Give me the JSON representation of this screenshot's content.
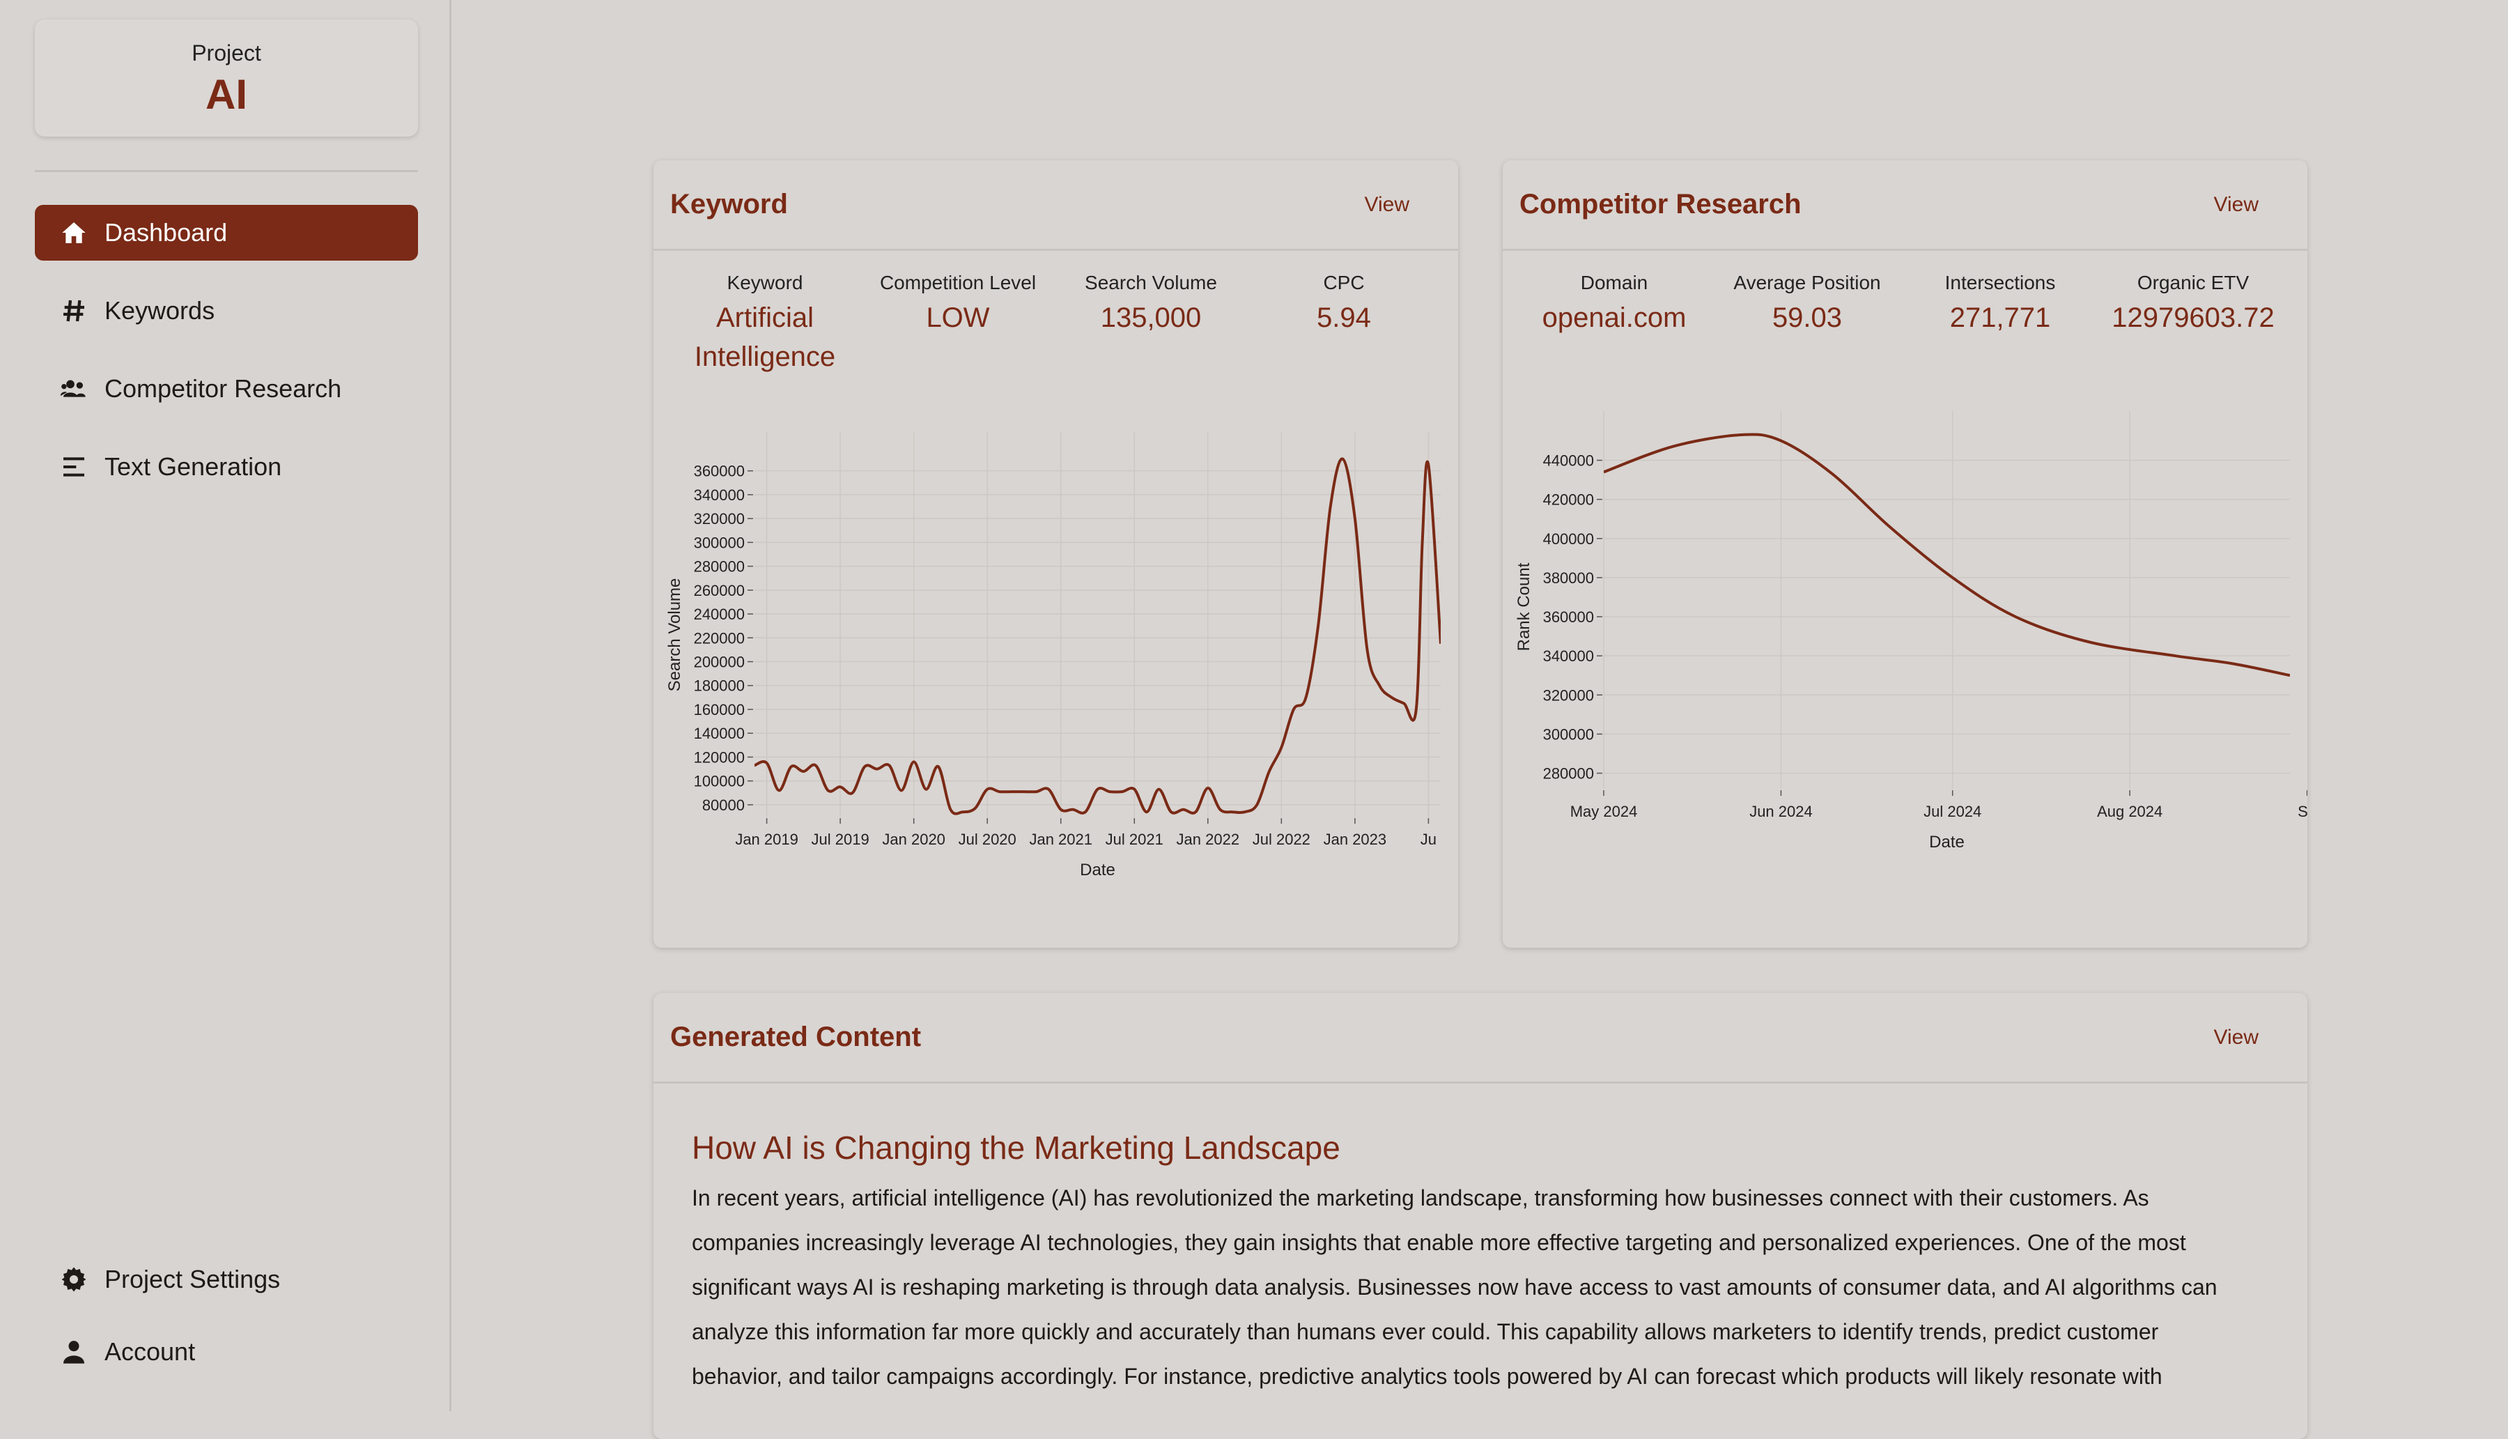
{
  "sidebar": {
    "project_label": "Project",
    "project_name": "AI",
    "nav": [
      {
        "label": "Dashboard",
        "icon": "home-icon",
        "active": true
      },
      {
        "label": "Keywords",
        "icon": "hash-icon"
      },
      {
        "label": "Competitor Research",
        "icon": "users-icon"
      },
      {
        "label": "Text Generation",
        "icon": "align-left-icon"
      }
    ],
    "bottom": [
      {
        "label": "Project Settings",
        "icon": "gear-icon"
      },
      {
        "label": "Account",
        "icon": "user-icon"
      }
    ]
  },
  "keyword_card": {
    "title": "Keyword",
    "view": "View",
    "stats": [
      {
        "label": "Keyword",
        "value": "Artificial Intelligence"
      },
      {
        "label": "Competition Level",
        "value": "LOW"
      },
      {
        "label": "Search Volume",
        "value": "135,000"
      },
      {
        "label": "CPC",
        "value": "5.94"
      }
    ]
  },
  "competitor_card": {
    "title": "Competitor Research",
    "view": "View",
    "stats": [
      {
        "label": "Domain",
        "value": "openai.com"
      },
      {
        "label": "Average Position",
        "value": "59.03"
      },
      {
        "label": "Intersections",
        "value": "271,771"
      },
      {
        "label": "Organic ETV",
        "value": "12979603.72"
      }
    ]
  },
  "content_card": {
    "title": "Generated Content",
    "view": "View",
    "article_title": "How AI is Changing the Marketing Landscape",
    "article_body": "In recent years, artificial intelligence (AI) has revolutionized the marketing landscape, transforming how businesses connect with their customers. As companies increasingly leverage AI technologies, they gain insights that enable more effective targeting and personalized experiences. One of the most significant ways AI is reshaping marketing is through data analysis. Businesses now have access to vast amounts of consumer data, and AI algorithms can analyze this information far more quickly and accurately than humans ever could. This capability allows marketers to identify trends, predict customer behavior, and tailor campaigns accordingly. For instance, predictive analytics tools powered by AI can forecast which products will likely resonate with"
  },
  "colors": {
    "accent": "#7a2a16",
    "background": "#d8d4d1",
    "grid": "#cdc8c4"
  },
  "chart_data": [
    {
      "type": "line",
      "name": "search-volume-chart",
      "xlabel": "Date",
      "ylabel": "Search Volume",
      "x_ticks": [
        "Jan 2019",
        "Jul 2019",
        "Jan 2020",
        "Jul 2020",
        "Jan 2021",
        "Jul 2021",
        "Jan 2022",
        "Jul 2022",
        "Jan 2023",
        "Ju"
      ],
      "y_ticks": [
        80000,
        100000,
        120000,
        140000,
        160000,
        180000,
        200000,
        220000,
        240000,
        260000,
        280000,
        300000,
        320000,
        340000,
        360000
      ],
      "ylim": [
        70000,
        375000
      ],
      "x_months": [
        -1,
        0,
        1,
        2,
        3,
        4,
        5,
        6,
        7,
        8,
        9,
        10,
        11,
        12,
        13,
        14,
        15,
        16,
        17,
        18,
        19,
        20,
        21,
        22,
        23,
        24,
        25,
        26,
        27,
        28,
        29,
        30,
        31,
        32,
        33,
        34,
        35,
        36,
        37,
        38,
        39,
        40,
        41,
        42,
        43,
        44,
        45,
        46,
        47,
        48,
        49,
        50,
        51,
        52,
        53,
        53.5,
        54,
        55
      ],
      "values": [
        113000,
        115000,
        92000,
        112000,
        108000,
        113000,
        92000,
        95000,
        90000,
        112000,
        110000,
        113000,
        92000,
        116000,
        93000,
        112000,
        76000,
        74000,
        77000,
        93000,
        91000,
        91000,
        91000,
        91000,
        93000,
        76000,
        76000,
        74000,
        93000,
        91000,
        91000,
        93000,
        74000,
        93000,
        74000,
        76000,
        74000,
        94000,
        76000,
        74000,
        74000,
        80000,
        108000,
        128000,
        160000,
        170000,
        230000,
        330000,
        370000,
        320000,
        210000,
        180000,
        170000,
        165000,
        160000,
        300000,
        365000,
        215000
      ],
      "xlim": [
        -1,
        55
      ]
    },
    {
      "type": "line",
      "name": "rank-count-chart",
      "xlabel": "Date",
      "ylabel": "Rank Count",
      "x_ticks": [
        "May 2024",
        "Jun 2024",
        "Jul 2024",
        "Aug 2024",
        "Se"
      ],
      "x_tick_days": [
        0,
        31,
        61,
        92,
        123
      ],
      "y_ticks": [
        280000,
        300000,
        320000,
        340000,
        360000,
        380000,
        400000,
        420000,
        440000
      ],
      "ylim": [
        272000,
        458000
      ],
      "xlim": [
        0,
        120
      ],
      "x_days": [
        0,
        12,
        24,
        31,
        40,
        50,
        61,
        72,
        85,
        100,
        110,
        120
      ],
      "values": [
        434000,
        447000,
        453000,
        450000,
        433000,
        406000,
        380000,
        360000,
        347000,
        340000,
        336000,
        330000
      ]
    }
  ]
}
